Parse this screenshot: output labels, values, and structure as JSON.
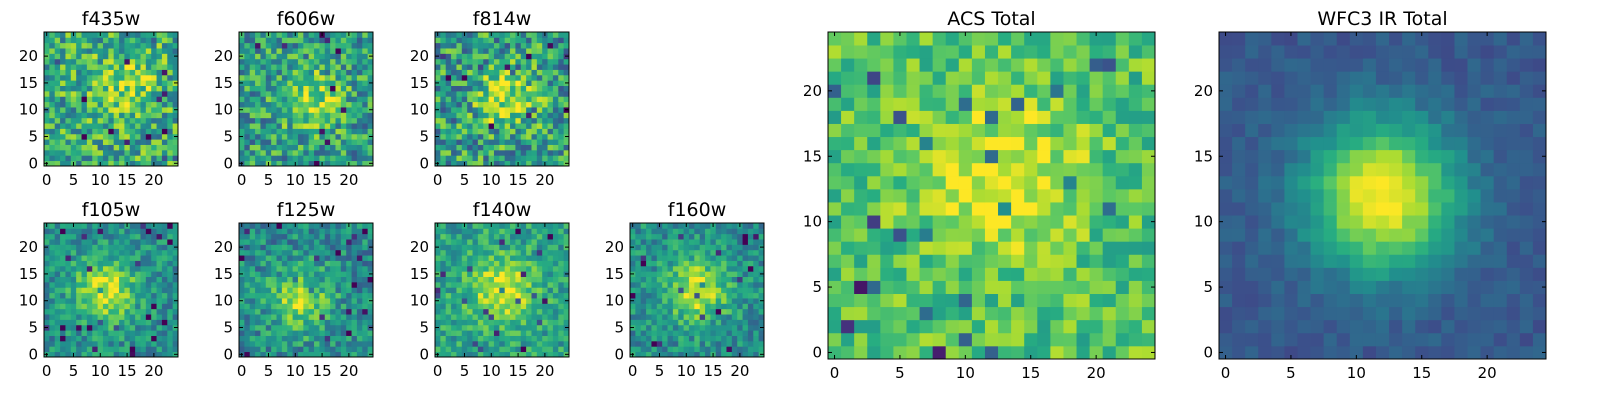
{
  "chart_data": {
    "type": "heatmap",
    "colormap": "viridis",
    "grid_size": 25,
    "panels": [
      {
        "id": "f435w",
        "title": "f435w",
        "x_ticks": [
          "0",
          "5",
          "10",
          "15",
          "20"
        ],
        "y_ticks": [
          "0",
          "5",
          "10",
          "15",
          "20"
        ],
        "source_peak": 0.25,
        "source_center": [
          15,
          15
        ],
        "noise": 0.55,
        "base": 0.62
      },
      {
        "id": "f606w",
        "title": "f606w",
        "x_ticks": [
          "0",
          "5",
          "10",
          "15",
          "20"
        ],
        "y_ticks": [
          "0",
          "5",
          "10",
          "15",
          "20"
        ],
        "source_peak": 0.35,
        "source_center": [
          13,
          12
        ],
        "noise": 0.55,
        "base": 0.55
      },
      {
        "id": "f814w",
        "title": "f814w",
        "x_ticks": [
          "0",
          "5",
          "10",
          "15",
          "20"
        ],
        "y_ticks": [
          "0",
          "5",
          "10",
          "15",
          "20"
        ],
        "source_peak": 0.35,
        "source_center": [
          13,
          12
        ],
        "noise": 0.6,
        "base": 0.55
      },
      {
        "id": "f105w",
        "title": "f105w",
        "x_ticks": [
          "0",
          "5",
          "10",
          "15",
          "20"
        ],
        "y_ticks": [
          "0",
          "5",
          "10",
          "15",
          "20"
        ],
        "source_peak": 0.45,
        "source_center": [
          11,
          12
        ],
        "noise": 0.35,
        "base": 0.5
      },
      {
        "id": "f125w",
        "title": "f125w",
        "x_ticks": [
          "0",
          "5",
          "10",
          "15",
          "20"
        ],
        "y_ticks": [
          "0",
          "5",
          "10",
          "15",
          "20"
        ],
        "source_peak": 0.4,
        "source_center": [
          11,
          10
        ],
        "noise": 0.4,
        "base": 0.48
      },
      {
        "id": "f140w",
        "title": "f140w",
        "x_ticks": [
          "0",
          "5",
          "10",
          "15",
          "20"
        ],
        "y_ticks": [
          "0",
          "5",
          "10",
          "15",
          "20"
        ],
        "source_peak": 0.4,
        "source_center": [
          12,
          12
        ],
        "noise": 0.35,
        "base": 0.58
      },
      {
        "id": "f160w",
        "title": "f160w",
        "x_ticks": [
          "0",
          "5",
          "10",
          "15",
          "20"
        ],
        "y_ticks": [
          "0",
          "5",
          "10",
          "15",
          "20"
        ],
        "source_peak": 0.45,
        "source_center": [
          12,
          12
        ],
        "noise": 0.35,
        "base": 0.5
      },
      {
        "id": "acs-total",
        "title": "ACS Total",
        "x_ticks": [
          "0",
          "5",
          "10",
          "15",
          "20"
        ],
        "y_ticks": [
          "0",
          "5",
          "10",
          "15",
          "20"
        ],
        "source_peak": 0.3,
        "source_center": [
          13,
          13
        ],
        "noise": 0.35,
        "base": 0.72
      },
      {
        "id": "wfc3-ir-total",
        "title": "WFC3 IR Total",
        "x_ticks": [
          "0",
          "5",
          "10",
          "15",
          "20"
        ],
        "y_ticks": [
          "0",
          "5",
          "10",
          "15",
          "20"
        ],
        "source_peak": 0.75,
        "source_center": [
          12,
          12
        ],
        "noise": 0.12,
        "base": 0.28
      }
    ]
  }
}
